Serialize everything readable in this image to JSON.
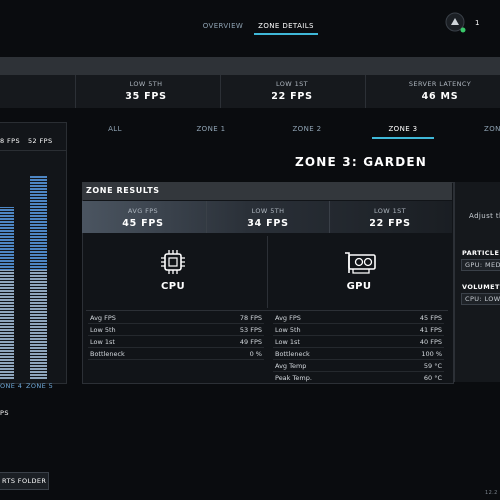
{
  "nav": {
    "tabs": [
      "OVERVIEW",
      "ZONE DETAILS"
    ],
    "badge": "1"
  },
  "summary": [
    {
      "label": "LOW 5TH",
      "value": "35 FPS"
    },
    {
      "label": "LOW 1ST",
      "value": "22 FPS"
    },
    {
      "label": "SERVER LATENCY",
      "value": "46 MS"
    }
  ],
  "side_chart": {
    "value_labels": [
      "8 FPS",
      "52 FPS"
    ],
    "categories": [
      "ONE 4",
      "ZONE 5"
    ],
    "footer_label": "PS"
  },
  "zone_tabs": [
    "ALL",
    "ZONE 1",
    "ZONE 2",
    "ZONE 3",
    "ZON"
  ],
  "zone_title": "ZONE 3: GARDEN",
  "results": {
    "title": "ZONE RESULTS",
    "stats": [
      {
        "label": "AVG FPS",
        "value": "45 FPS"
      },
      {
        "label": "LOW 5TH",
        "value": "34 FPS"
      },
      {
        "label": "LOW 1ST",
        "value": "22 FPS"
      }
    ],
    "cpu": {
      "label": "CPU",
      "rows": [
        [
          "Avg FPS",
          "78 FPS"
        ],
        [
          "Low 5th",
          "53 FPS"
        ],
        [
          "Low 1st",
          "49 FPS"
        ],
        [
          "Bottleneck",
          "0 %"
        ]
      ]
    },
    "gpu": {
      "label": "GPU",
      "rows": [
        [
          "Avg FPS",
          "45 FPS"
        ],
        [
          "Low 5th",
          "41 FPS"
        ],
        [
          "Low 1st",
          "40 FPS"
        ],
        [
          "Bottleneck",
          "100 %"
        ],
        [
          "Avg Temp",
          "59 °C"
        ],
        [
          "Peak Temp.",
          "60 °C"
        ]
      ]
    }
  },
  "settings": {
    "hint": "Adjust the",
    "items": [
      {
        "label": "PARTICLE F",
        "value": "GPU: MED"
      },
      {
        "label": "VOLUMETR",
        "value": "CPU: LOW"
      }
    ]
  },
  "footer": {
    "button": "RTS FOLDER",
    "version": "12.2"
  }
}
